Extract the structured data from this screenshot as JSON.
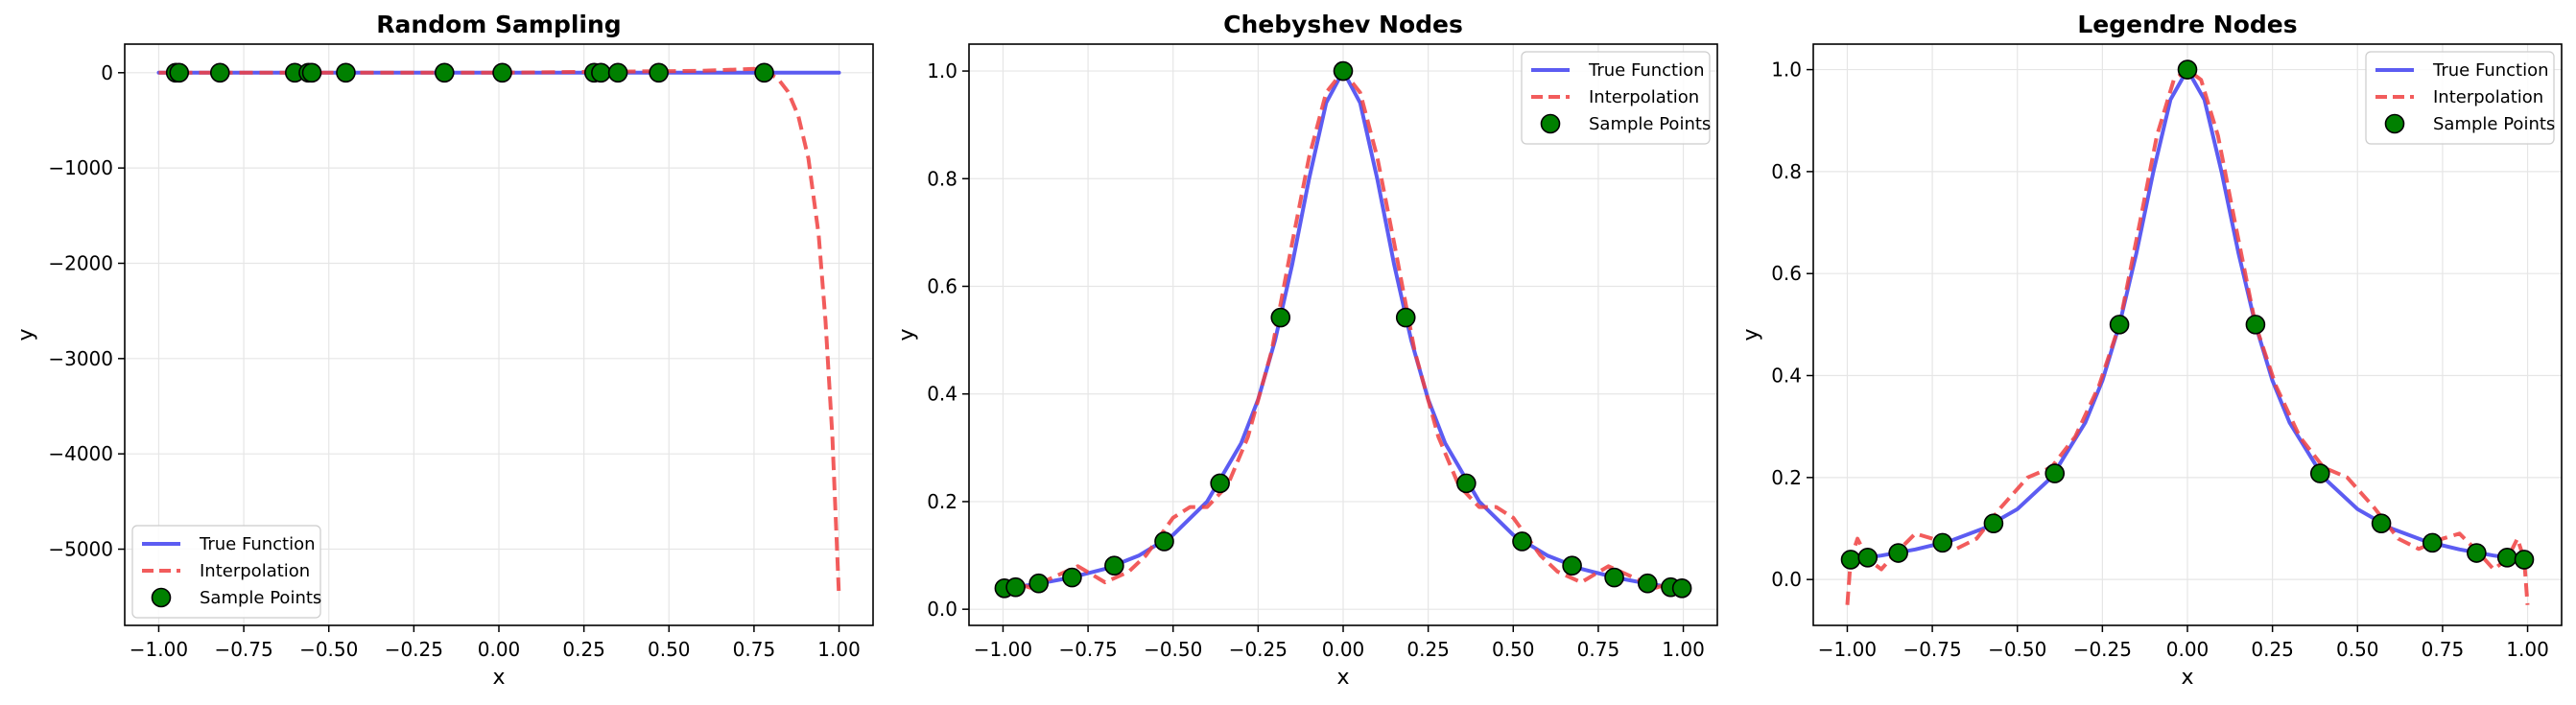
{
  "chart_data": [
    {
      "type": "line",
      "title": "Random Sampling",
      "xlabel": "x",
      "ylabel": "y",
      "xlim": [
        -1.1,
        1.1
      ],
      "ylim": [
        -5800,
        300
      ],
      "xticks": [
        -1.0,
        -0.75,
        -0.5,
        -0.25,
        0.0,
        0.25,
        0.5,
        0.75,
        1.0
      ],
      "xtick_labels": [
        "−1.00",
        "−0.75",
        "−0.50",
        "−0.25",
        "0.00",
        "0.25",
        "0.50",
        "0.75",
        "1.00"
      ],
      "yticks": [
        0,
        -1000,
        -2000,
        -3000,
        -4000,
        -5000
      ],
      "ytick_labels": [
        "0",
        "−1000",
        "−2000",
        "−3000",
        "−4000",
        "−5000"
      ],
      "grid": true,
      "legend_position": "lower-left",
      "series": [
        {
          "name": "True Function",
          "style": "solid",
          "color": "#4040f0",
          "x": [
            -1.0,
            -0.5,
            0.0,
            0.5,
            1.0
          ],
          "y": [
            0.04,
            0.14,
            1.0,
            0.14,
            0.04
          ]
        },
        {
          "name": "Interpolation",
          "style": "dashed",
          "color": "#f04040",
          "x": [
            -1.0,
            -0.9,
            0.0,
            0.6,
            0.75,
            0.79,
            0.82,
            0.85,
            0.88,
            0.91,
            0.94,
            0.96,
            0.98,
            1.0
          ],
          "y": [
            0,
            0,
            0,
            20,
            40,
            0,
            -60,
            -200,
            -450,
            -900,
            -1700,
            -2600,
            -3800,
            -5500
          ]
        },
        {
          "name": "Sample Points",
          "style": "markers",
          "color": "#008000",
          "x": [
            -0.95,
            -0.94,
            -0.82,
            -0.6,
            -0.56,
            -0.55,
            -0.45,
            -0.16,
            0.01,
            0.28,
            0.3,
            0.35,
            0.47,
            0.78
          ],
          "y": [
            0,
            0,
            0,
            0,
            0,
            0,
            0,
            0,
            0,
            0,
            0,
            0,
            0,
            0
          ]
        }
      ]
    },
    {
      "type": "line",
      "title": "Chebyshev Nodes",
      "xlabel": "x",
      "ylabel": "y",
      "xlim": [
        -1.1,
        1.1
      ],
      "ylim": [
        -0.03,
        1.05
      ],
      "xticks": [
        -1.0,
        -0.75,
        -0.5,
        -0.25,
        0.0,
        0.25,
        0.5,
        0.75,
        1.0
      ],
      "xtick_labels": [
        "−1.00",
        "−0.75",
        "−0.50",
        "−0.25",
        "0.00",
        "0.25",
        "0.50",
        "0.75",
        "1.00"
      ],
      "yticks": [
        0.0,
        0.2,
        0.4,
        0.6,
        0.8,
        1.0
      ],
      "ytick_labels": [
        "0.0",
        "0.2",
        "0.4",
        "0.6",
        "0.8",
        "1.0"
      ],
      "grid": true,
      "legend_position": "upper-right",
      "series": [
        {
          "name": "True Function",
          "style": "solid",
          "color": "#4040f0",
          "x": [
            -1.0,
            -0.9,
            -0.8,
            -0.7,
            -0.6,
            -0.5,
            -0.4,
            -0.3,
            -0.25,
            -0.2,
            -0.15,
            -0.1,
            -0.05,
            0.0,
            0.05,
            0.1,
            0.15,
            0.2,
            0.25,
            0.3,
            0.4,
            0.5,
            0.6,
            0.7,
            0.8,
            0.9,
            1.0
          ],
          "y": [
            0.038,
            0.047,
            0.059,
            0.075,
            0.1,
            0.138,
            0.2,
            0.308,
            0.39,
            0.5,
            0.64,
            0.8,
            0.941,
            1.0,
            0.941,
            0.8,
            0.64,
            0.5,
            0.39,
            0.308,
            0.2,
            0.138,
            0.1,
            0.075,
            0.059,
            0.047,
            0.038
          ]
        },
        {
          "name": "Interpolation",
          "style": "dashed",
          "color": "#f04040",
          "x": [
            -1.0,
            -0.97,
            -0.92,
            -0.85,
            -0.78,
            -0.7,
            -0.63,
            -0.58,
            -0.5,
            -0.45,
            -0.4,
            -0.34,
            -0.28,
            -0.21,
            -0.15,
            -0.1,
            -0.05,
            0.0,
            0.05,
            0.1,
            0.15,
            0.21,
            0.28,
            0.34,
            0.4,
            0.45,
            0.5,
            0.58,
            0.63,
            0.7,
            0.78,
            0.85,
            0.92,
            0.97,
            1.0
          ],
          "y": [
            0.038,
            0.05,
            0.04,
            0.06,
            0.08,
            0.05,
            0.07,
            0.1,
            0.17,
            0.19,
            0.19,
            0.23,
            0.32,
            0.48,
            0.68,
            0.84,
            0.96,
            1.0,
            0.96,
            0.84,
            0.68,
            0.48,
            0.32,
            0.23,
            0.19,
            0.19,
            0.17,
            0.1,
            0.07,
            0.05,
            0.08,
            0.06,
            0.04,
            0.05,
            0.038
          ]
        },
        {
          "name": "Sample Points",
          "style": "markers",
          "color": "#008000",
          "x": [
            -0.996,
            -0.963,
            -0.895,
            -0.797,
            -0.673,
            -0.526,
            -0.362,
            -0.184,
            0.0,
            0.184,
            0.362,
            0.526,
            0.673,
            0.797,
            0.895,
            0.963,
            0.996
          ],
          "y": [
            0.039,
            0.041,
            0.048,
            0.059,
            0.081,
            0.126,
            0.234,
            0.542,
            1.0,
            0.542,
            0.234,
            0.126,
            0.081,
            0.059,
            0.048,
            0.041,
            0.039
          ]
        }
      ]
    },
    {
      "type": "line",
      "title": "Legendre Nodes",
      "xlabel": "x",
      "ylabel": "y",
      "xlim": [
        -1.1,
        1.1
      ],
      "ylim": [
        -0.09,
        1.05
      ],
      "xticks": [
        -1.0,
        -0.75,
        -0.5,
        -0.25,
        0.0,
        0.25,
        0.5,
        0.75,
        1.0
      ],
      "xtick_labels": [
        "−1.00",
        "−0.75",
        "−0.50",
        "−0.25",
        "0.00",
        "0.25",
        "0.50",
        "0.75",
        "1.00"
      ],
      "yticks": [
        0.0,
        0.2,
        0.4,
        0.6,
        0.8,
        1.0
      ],
      "ytick_labels": [
        "0.0",
        "0.2",
        "0.4",
        "0.6",
        "0.8",
        "1.0"
      ],
      "grid": true,
      "legend_position": "upper-right",
      "series": [
        {
          "name": "True Function",
          "style": "solid",
          "color": "#4040f0",
          "x": [
            -1.0,
            -0.9,
            -0.8,
            -0.7,
            -0.6,
            -0.5,
            -0.4,
            -0.3,
            -0.25,
            -0.2,
            -0.15,
            -0.1,
            -0.05,
            0.0,
            0.05,
            0.1,
            0.15,
            0.2,
            0.25,
            0.3,
            0.4,
            0.5,
            0.6,
            0.7,
            0.8,
            0.9,
            1.0
          ],
          "y": [
            0.038,
            0.047,
            0.059,
            0.075,
            0.1,
            0.138,
            0.2,
            0.308,
            0.39,
            0.5,
            0.64,
            0.8,
            0.941,
            1.0,
            0.941,
            0.8,
            0.64,
            0.5,
            0.39,
            0.308,
            0.2,
            0.138,
            0.1,
            0.075,
            0.059,
            0.047,
            0.038
          ]
        },
        {
          "name": "Interpolation",
          "style": "dashed",
          "color": "#f04040",
          "x": [
            -1.0,
            -0.99,
            -0.97,
            -0.94,
            -0.9,
            -0.86,
            -0.8,
            -0.75,
            -0.68,
            -0.62,
            -0.55,
            -0.47,
            -0.4,
            -0.33,
            -0.26,
            -0.2,
            -0.14,
            -0.09,
            -0.04,
            0.0,
            0.04,
            0.09,
            0.14,
            0.2,
            0.26,
            0.33,
            0.4,
            0.47,
            0.55,
            0.62,
            0.68,
            0.75,
            0.8,
            0.86,
            0.9,
            0.94,
            0.97,
            0.99,
            1.0
          ],
          "y": [
            -0.05,
            0.04,
            0.08,
            0.04,
            0.02,
            0.05,
            0.09,
            0.08,
            0.06,
            0.08,
            0.14,
            0.2,
            0.22,
            0.28,
            0.38,
            0.5,
            0.7,
            0.87,
            0.98,
            1.0,
            0.98,
            0.87,
            0.7,
            0.5,
            0.38,
            0.28,
            0.22,
            0.2,
            0.14,
            0.08,
            0.06,
            0.08,
            0.09,
            0.05,
            0.02,
            0.04,
            0.08,
            0.04,
            -0.05
          ]
        },
        {
          "name": "Sample Points",
          "style": "markers",
          "color": "#008000",
          "x": [
            -0.99,
            -0.94,
            -0.85,
            -0.72,
            -0.57,
            -0.39,
            -0.2,
            0.0,
            0.2,
            0.39,
            0.57,
            0.72,
            0.85,
            0.94,
            0.99
          ],
          "y": [
            0.039,
            0.043,
            0.052,
            0.072,
            0.11,
            0.208,
            0.5,
            1.0,
            0.5,
            0.208,
            0.11,
            0.072,
            0.052,
            0.043,
            0.039
          ]
        }
      ]
    }
  ]
}
